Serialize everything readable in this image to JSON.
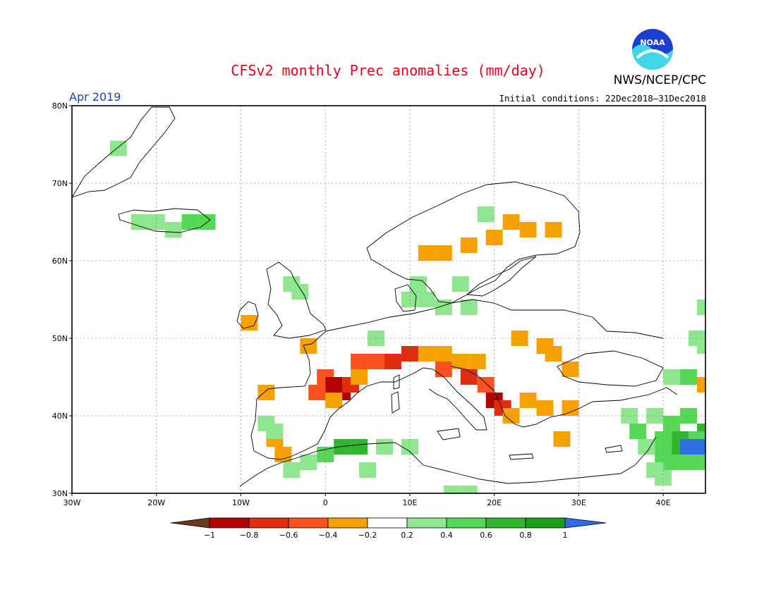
{
  "header": {
    "title": "CFSv2 monthly Prec anomalies (mm/day)",
    "agency": "NWS/NCEP/CPC",
    "month": "Apr 2019",
    "initial_conditions": "Initial conditions: 22Dec2018–31Dec2018",
    "logo_text": "NOAA"
  },
  "map": {
    "lon_range": [
      -30,
      45
    ],
    "lat_range": [
      30,
      80
    ],
    "lat_ticks": [
      {
        "value": 80,
        "label": "80N"
      },
      {
        "value": 70,
        "label": "70N"
      },
      {
        "value": 60,
        "label": "60N"
      },
      {
        "value": 50,
        "label": "50N"
      },
      {
        "value": 40,
        "label": "40N"
      },
      {
        "value": 30,
        "label": "30N"
      }
    ],
    "lon_ticks": [
      {
        "value": -30,
        "label": "30W"
      },
      {
        "value": -20,
        "label": "20W"
      },
      {
        "value": -10,
        "label": "10W"
      },
      {
        "value": 0,
        "label": "0"
      },
      {
        "value": 10,
        "label": "10E"
      },
      {
        "value": 20,
        "label": "20E"
      },
      {
        "value": 30,
        "label": "30E"
      },
      {
        "value": 40,
        "label": "40E"
      }
    ],
    "grid": true,
    "colors": {
      "-1": "#6b3a1e",
      "-0.8": "#b30000",
      "-0.6": "#de2d0f",
      "-0.4": "#f9521f",
      "-0.2": "#f7a100",
      "0.2": "#8ee68e",
      "0.4": "#55d855",
      "0.6": "#2fb82f",
      "0.8": "#1a9e1a",
      "1": "#2d6fe0"
    },
    "anomaly_cells": [
      {
        "lon": -24.5,
        "lat": 74.5,
        "v": 0.2
      },
      {
        "lon": -22,
        "lat": 65,
        "v": 0.2
      },
      {
        "lon": -20,
        "lat": 65,
        "v": 0.2
      },
      {
        "lon": -18,
        "lat": 64,
        "v": 0.2
      },
      {
        "lon": -16,
        "lat": 65,
        "v": 0.4
      },
      {
        "lon": -14,
        "lat": 65,
        "v": 0.4
      },
      {
        "lon": -4,
        "lat": 57,
        "v": 0.2
      },
      {
        "lon": -3,
        "lat": 56,
        "v": 0.2
      },
      {
        "lon": -9,
        "lat": 52,
        "v": -0.2
      },
      {
        "lon": -2,
        "lat": 49,
        "v": -0.2
      },
      {
        "lon": 6,
        "lat": 50,
        "v": 0.2
      },
      {
        "lon": 10,
        "lat": 55,
        "v": 0.2
      },
      {
        "lon": 12,
        "lat": 55,
        "v": 0.2
      },
      {
        "lon": 14,
        "lat": 54,
        "v": 0.2
      },
      {
        "lon": 17,
        "lat": 54,
        "v": 0.2
      },
      {
        "lon": 11,
        "lat": 57,
        "v": 0.2
      },
      {
        "lon": 16,
        "lat": 57,
        "v": 0.2
      },
      {
        "lon": 19,
        "lat": 66,
        "v": 0.2
      },
      {
        "lon": 17,
        "lat": 62,
        "v": -0.2
      },
      {
        "lon": 20,
        "lat": 63,
        "v": -0.2
      },
      {
        "lon": 22,
        "lat": 65,
        "v": -0.2
      },
      {
        "lon": 24,
        "lat": 64,
        "v": -0.2
      },
      {
        "lon": 27,
        "lat": 64,
        "v": -0.2
      },
      {
        "lon": 12,
        "lat": 61,
        "v": -0.2
      },
      {
        "lon": 14,
        "lat": 61,
        "v": -0.2
      },
      {
        "lon": 26,
        "lat": 49,
        "v": -0.2
      },
      {
        "lon": 27,
        "lat": 48,
        "v": -0.2
      },
      {
        "lon": 23,
        "lat": 50,
        "v": -0.2
      },
      {
        "lon": 29,
        "lat": 46,
        "v": -0.2
      },
      {
        "lon": 4,
        "lat": 47,
        "v": -0.4
      },
      {
        "lon": 6,
        "lat": 47,
        "v": -0.4
      },
      {
        "lon": 8,
        "lat": 47,
        "v": -0.6
      },
      {
        "lon": 10,
        "lat": 48,
        "v": -0.6
      },
      {
        "lon": 12,
        "lat": 48,
        "v": -0.2
      },
      {
        "lon": 14,
        "lat": 48,
        "v": -0.2
      },
      {
        "lon": 16,
        "lat": 47,
        "v": -0.2
      },
      {
        "lon": 18,
        "lat": 47,
        "v": -0.2
      },
      {
        "lon": 14,
        "lat": 46,
        "v": -0.4
      },
      {
        "lon": 17,
        "lat": 45,
        "v": -0.6
      },
      {
        "lon": 19,
        "lat": 44,
        "v": -0.4
      },
      {
        "lon": 20,
        "lat": 42,
        "v": -0.8
      },
      {
        "lon": 21,
        "lat": 41,
        "v": -0.6
      },
      {
        "lon": 22,
        "lat": 40,
        "v": -0.2
      },
      {
        "lon": 0,
        "lat": 45,
        "v": -0.4
      },
      {
        "lon": 1,
        "lat": 44,
        "v": -0.8
      },
      {
        "lon": 2,
        "lat": 43,
        "v": -0.8
      },
      {
        "lon": 3,
        "lat": 44,
        "v": -0.6
      },
      {
        "lon": -1,
        "lat": 43,
        "v": -0.4
      },
      {
        "lon": 1,
        "lat": 42,
        "v": -0.2
      },
      {
        "lon": 4,
        "lat": 45,
        "v": -0.2
      },
      {
        "lon": -7,
        "lat": 43,
        "v": -0.2
      },
      {
        "lon": -6,
        "lat": 37,
        "v": -0.2
      },
      {
        "lon": -5,
        "lat": 35,
        "v": -0.2
      },
      {
        "lon": -6,
        "lat": 38,
        "v": 0.2
      },
      {
        "lon": -7,
        "lat": 39,
        "v": 0.2
      },
      {
        "lon": 2,
        "lat": 36,
        "v": 0.6
      },
      {
        "lon": 4,
        "lat": 36,
        "v": 0.6
      },
      {
        "lon": 0,
        "lat": 35,
        "v": 0.4
      },
      {
        "lon": 7,
        "lat": 36,
        "v": 0.2
      },
      {
        "lon": 10,
        "lat": 36,
        "v": 0.2
      },
      {
        "lon": -2,
        "lat": 34,
        "v": 0.2
      },
      {
        "lon": -4,
        "lat": 33,
        "v": 0.2
      },
      {
        "lon": 5,
        "lat": 33,
        "v": 0.2
      },
      {
        "lon": 15,
        "lat": 30,
        "v": 0.2
      },
      {
        "lon": 17,
        "lat": 30,
        "v": 0.2
      },
      {
        "lon": 24,
        "lat": 42,
        "v": -0.2
      },
      {
        "lon": 26,
        "lat": 41,
        "v": -0.2
      },
      {
        "lon": 29,
        "lat": 41,
        "v": -0.2
      },
      {
        "lon": 28,
        "lat": 37,
        "v": -0.2
      },
      {
        "lon": 36,
        "lat": 40,
        "v": 0.2
      },
      {
        "lon": 39,
        "lat": 40,
        "v": 0.2
      },
      {
        "lon": 41,
        "lat": 39,
        "v": 0.4
      },
      {
        "lon": 43,
        "lat": 40,
        "v": 0.4
      },
      {
        "lon": 45,
        "lat": 38,
        "v": 0.6
      },
      {
        "lon": 37,
        "lat": 38,
        "v": 0.4
      },
      {
        "lon": 40,
        "lat": 37,
        "v": 0.4
      },
      {
        "lon": 42,
        "lat": 37,
        "v": 0.6
      },
      {
        "lon": 44,
        "lat": 37,
        "v": 0.4
      },
      {
        "lon": 38,
        "lat": 36,
        "v": 0.2
      },
      {
        "lon": 40,
        "lat": 35,
        "v": 0.4
      },
      {
        "lon": 42,
        "lat": 35,
        "v": 0.6
      },
      {
        "lon": 44,
        "lat": 35,
        "v": 0.8
      },
      {
        "lon": 43,
        "lat": 36,
        "v": 1
      },
      {
        "lon": 45,
        "lat": 36,
        "v": 1
      },
      {
        "lon": 41,
        "lat": 34,
        "v": 0.4
      },
      {
        "lon": 43,
        "lat": 34,
        "v": 0.4
      },
      {
        "lon": 45,
        "lat": 34,
        "v": 0.4
      },
      {
        "lon": 39,
        "lat": 33,
        "v": 0.2
      },
      {
        "lon": 40,
        "lat": 32,
        "v": 0.2
      },
      {
        "lon": 44,
        "lat": 50,
        "v": 0.2
      },
      {
        "lon": 45,
        "lat": 49,
        "v": 0.2
      },
      {
        "lon": 41,
        "lat": 45,
        "v": 0.2
      },
      {
        "lon": 43,
        "lat": 45,
        "v": 0.4
      },
      {
        "lon": 45,
        "lat": 44,
        "v": -0.2
      },
      {
        "lon": 45,
        "lat": 54,
        "v": 0.2
      }
    ]
  },
  "colorbar": {
    "labels": [
      "-1",
      "-0.8",
      "-0.6",
      "-0.4",
      "-0.2",
      "0.2",
      "0.4",
      "0.6",
      "0.8",
      "1"
    ],
    "colors": [
      "#6b3a1e",
      "#b30000",
      "#de2d0f",
      "#f9521f",
      "#f7a100",
      "#ffffff",
      "#8ee68e",
      "#55d855",
      "#2fb82f",
      "#1a9e1a",
      "#2d6fe0"
    ]
  }
}
